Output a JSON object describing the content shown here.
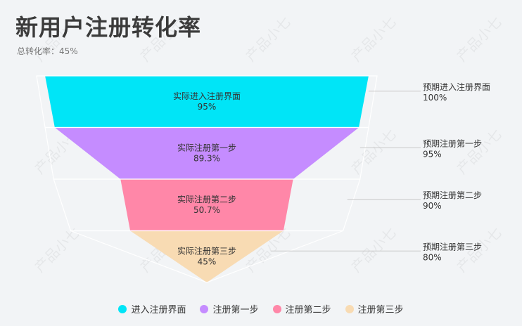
{
  "header": {
    "title": "新用户注册转化率",
    "subtitle": "总转化率：45%"
  },
  "watermark": "产品小七",
  "colors": {
    "actual": [
      "#00e5f7",
      "#c58cff",
      "#ff87a8",
      "#f8dbb3"
    ],
    "expected": [
      "#00e5f7",
      "#c58cff",
      "#ff87a8",
      "#f8dbb3"
    ]
  },
  "legend": [
    "进入注册界面",
    "注册第一步",
    "注册第二步",
    "注册第三步"
  ],
  "chart_data": {
    "type": "funnel",
    "title": "新用户注册转化率",
    "subtitle": "总转化率：45%",
    "categories": [
      "进入注册界面",
      "注册第一步",
      "注册第二步",
      "注册第三步"
    ],
    "series": [
      {
        "name": "预期",
        "labels": [
          "预期进入注册界面",
          "预期注册第一步",
          "预期注册第二步",
          "预期注册第三步"
        ],
        "values": [
          100,
          95,
          90,
          80
        ]
      },
      {
        "name": "实际",
        "labels": [
          "实际进入注册界面",
          "实际注册第一步",
          "实际注册第二步",
          "实际注册第三步"
        ],
        "values": [
          95,
          89.3,
          50.7,
          45
        ]
      }
    ],
    "value_suffix": "%",
    "legend_position": "bottom"
  }
}
